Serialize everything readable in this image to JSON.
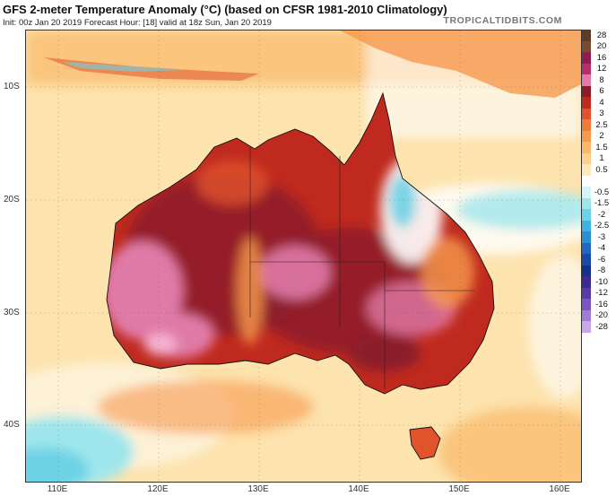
{
  "title": "GFS 2-meter Temperature Anomaly (°C) (based on CFSR 1981-2010 Climatology)",
  "subtitle": "Init: 00z Jan 20 2019   Forecast Hour: [18]   valid at 18z Sun, Jan 20 2019",
  "brand": "TROPICALTIDBITS.COM",
  "latitude_labels": [
    "10S",
    "20S",
    "30S",
    "40S"
  ],
  "longitude_labels": [
    "110E",
    "120E",
    "130E",
    "140E",
    "150E",
    "160E"
  ],
  "color_scale": [
    {
      "label": "28",
      "color": "#5e3a28"
    },
    {
      "label": "20",
      "color": "#7a4b33"
    },
    {
      "label": "16",
      "color": "#8f1d4e"
    },
    {
      "label": "12",
      "color": "#b5306a"
    },
    {
      "label": "8",
      "color": "#e07aa8"
    },
    {
      "label": "6",
      "color": "#8b1a2a"
    },
    {
      "label": "4",
      "color": "#c02a1e"
    },
    {
      "label": "3",
      "color": "#e0532b"
    },
    {
      "label": "2.5",
      "color": "#f07a3a"
    },
    {
      "label": "2",
      "color": "#f69a4e"
    },
    {
      "label": "1.5",
      "color": "#f9b86a"
    },
    {
      "label": "1",
      "color": "#fbd18d"
    },
    {
      "label": "0.5",
      "color": "#fde8b8"
    },
    {
      "label": "",
      "color": "#ffffff"
    },
    {
      "label": "-0.5",
      "color": "#d6f4f4"
    },
    {
      "label": "-1.5",
      "color": "#9fe6ec"
    },
    {
      "label": "-2",
      "color": "#6dd2e6"
    },
    {
      "label": "-2.5",
      "color": "#3fb3dd"
    },
    {
      "label": "-3",
      "color": "#2a8fd3"
    },
    {
      "label": "-4",
      "color": "#2467c2"
    },
    {
      "label": "-6",
      "color": "#1a49a8"
    },
    {
      "label": "-8",
      "color": "#14308a"
    },
    {
      "label": "-10",
      "color": "#3b2a8f"
    },
    {
      "label": "-12",
      "color": "#5a3aa8"
    },
    {
      "label": "-16",
      "color": "#7d55c2"
    },
    {
      "label": "-20",
      "color": "#a27bd6"
    },
    {
      "label": "-28",
      "color": "#c9a8e6"
    }
  ]
}
